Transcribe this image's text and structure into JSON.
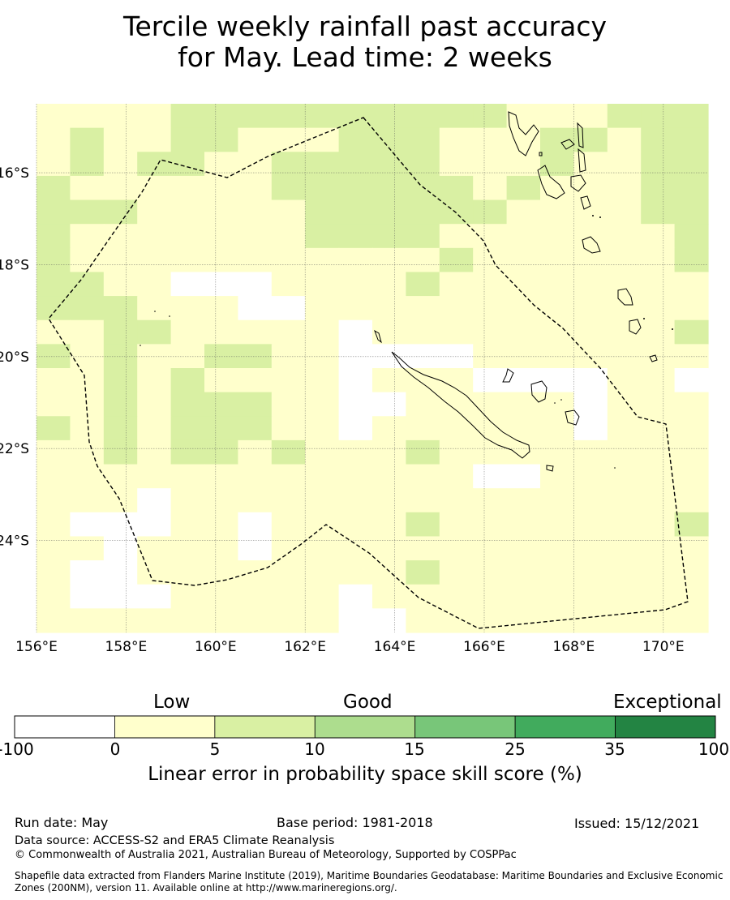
{
  "title": {
    "line1": "Tercile weekly rainfall past accuracy",
    "line2": "for May. Lead time: 2 weeks"
  },
  "map": {
    "lon_range": [
      156,
      171
    ],
    "lat_range": [
      -26.0,
      -14.5
    ],
    "x_ticks": [
      "156°E",
      "158°E",
      "160°E",
      "162°E",
      "164°E",
      "166°E",
      "168°E",
      "170°E"
    ],
    "y_ticks": [
      "16°S",
      "18°S",
      "20°S",
      "22°S",
      "24°S"
    ],
    "colors": {
      "-100": "#ffffff",
      "0": "#ffffcc",
      "5": "#d9f0a3",
      "10": "#addd8e",
      "15": "#78c679",
      "25": "#41ab5d",
      "35": "#238443"
    },
    "grid_rows_note": "rows top to bottom, cells left to right; W=white(<0) Y=0-5 G=5-10",
    "grid": [
      "YYYYGGGGGGGGGGYYYGGG",
      "YGYYGGYYYGGGYYYGGYGG",
      "YGYGGYYGGGGGYYYGYYGG",
      "GYYYYYYGGGGGGYGYYYGG",
      "GGGYYYYYGGGGGGYYYYGG",
      "GYYYYYYYGGGGYYYYYYYG",
      "GYYYYYYYYYYYGYYYYYYG",
      "GGYYWWWYYYYGYYYYYYYY",
      "GGGYYYWWYYYYYYYYYYYY",
      "YYGGYYYYYWYYYYYYYYYG",
      "GYGYYGGYYWWWWYYYYYYY",
      "YYGYGYYYYWYYYWWWWYYW",
      "YYGYGGGYYWWYYYYYWYYY",
      "GYGYGGGYYWYYYYYYWYYY",
      "YYGYGGYGYYYGYYYYYYYY",
      "YYYYYYYYYYYYYWWYYYYY",
      "YYYWYYYYYYYYYYYYYYYY",
      "YWWWYYWYYYYGYYYYYYYG",
      "YYWYYYWYYYYYYYYYYYYY",
      "YWWYYYYYYYYGYYYYYYYY",
      "YWWWYYYYYWYYYYYYYYYY",
      "YYYYYYYYYWWYYYYYYYYY"
    ]
  },
  "colorbar": {
    "categories": [
      "Low",
      "Good",
      "Exceptional"
    ],
    "ticks": [
      "-100",
      "0",
      "5",
      "10",
      "15",
      "25",
      "35",
      "100"
    ],
    "label": "Linear error in probability space skill score (%)"
  },
  "footer": {
    "run_date": "Run date: May",
    "base_period": "Base period: 1981-2018",
    "issued": "Issued: 15/12/2021",
    "data_source": "Data source: ACCESS-S2 and ERA5 Climate Reanalysis",
    "copyright": "© Commonwealth of Australia 2021, Australian Bureau of Meteorology, Supported by COSPPac",
    "shapefile_line1": "Shapefile data extracted from Flanders Marine Institute (2019), Maritime Boundaries Geodatabase: Maritime Boundaries and Exclusive Economic",
    "shapefile_line2": "Zones (200NM), version 11. Available online at http://www.marineregions.org/."
  }
}
